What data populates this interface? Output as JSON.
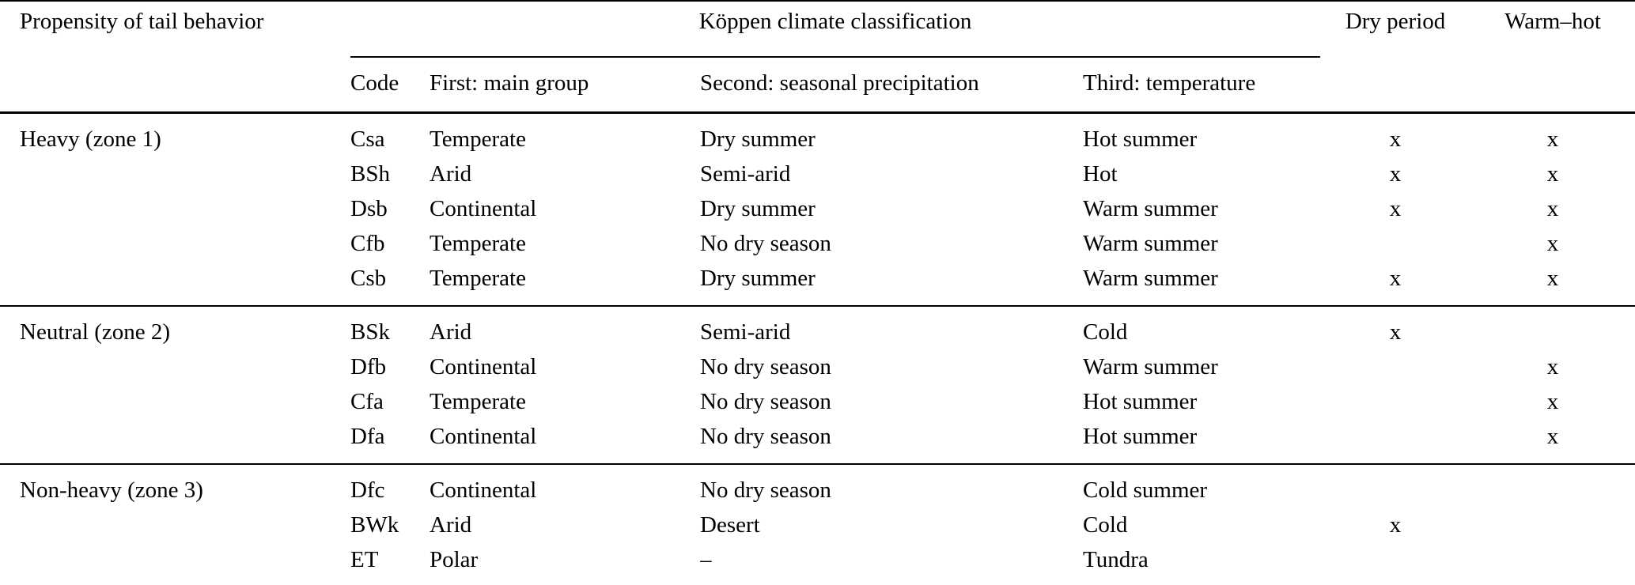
{
  "table": {
    "header": {
      "col_propensity": "Propensity of tail behavior",
      "koppen_group": "Köppen climate classification",
      "col_code": "Code",
      "col_main_group": "First: main group",
      "col_precip": "Second: seasonal precipitation",
      "col_temp": "Third: temperature",
      "col_dry": "Dry period",
      "col_warmhot": "Warm–hot"
    },
    "sections": [
      {
        "zone_label": "Heavy (zone 1)",
        "rows": [
          {
            "code": "Csa",
            "main_group": "Temperate",
            "precipitation": "Dry summer",
            "temperature": "Hot summer",
            "dry_period": "x",
            "warm_hot": "x"
          },
          {
            "code": "BSh",
            "main_group": "Arid",
            "precipitation": "Semi-arid",
            "temperature": "Hot",
            "dry_period": "x",
            "warm_hot": "x"
          },
          {
            "code": "Dsb",
            "main_group": "Continental",
            "precipitation": "Dry summer",
            "temperature": "Warm summer",
            "dry_period": "x",
            "warm_hot": "x"
          },
          {
            "code": "Cfb",
            "main_group": "Temperate",
            "precipitation": "No dry season",
            "temperature": "Warm summer",
            "dry_period": "",
            "warm_hot": "x"
          },
          {
            "code": "Csb",
            "main_group": "Temperate",
            "precipitation": "Dry summer",
            "temperature": "Warm summer",
            "dry_period": "x",
            "warm_hot": "x"
          }
        ]
      },
      {
        "zone_label": "Neutral (zone 2)",
        "rows": [
          {
            "code": "BSk",
            "main_group": "Arid",
            "precipitation": "Semi-arid",
            "temperature": "Cold",
            "dry_period": "x",
            "warm_hot": ""
          },
          {
            "code": "Dfb",
            "main_group": "Continental",
            "precipitation": "No dry season",
            "temperature": "Warm summer",
            "dry_period": "",
            "warm_hot": "x"
          },
          {
            "code": "Cfa",
            "main_group": "Temperate",
            "precipitation": "No dry season",
            "temperature": "Hot summer",
            "dry_period": "",
            "warm_hot": "x"
          },
          {
            "code": "Dfa",
            "main_group": "Continental",
            "precipitation": "No dry season",
            "temperature": "Hot summer",
            "dry_period": "",
            "warm_hot": "x"
          }
        ]
      },
      {
        "zone_label": "Non-heavy (zone 3)",
        "rows": [
          {
            "code": "Dfc",
            "main_group": "Continental",
            "precipitation": "No dry season",
            "temperature": "Cold summer",
            "dry_period": "",
            "warm_hot": ""
          },
          {
            "code": "BWk",
            "main_group": "Arid",
            "precipitation": "Desert",
            "temperature": "Cold",
            "dry_period": "x",
            "warm_hot": ""
          },
          {
            "code": "ET",
            "main_group": "Polar",
            "precipitation": "–",
            "temperature": "Tundra",
            "dry_period": "",
            "warm_hot": ""
          }
        ]
      }
    ]
  }
}
